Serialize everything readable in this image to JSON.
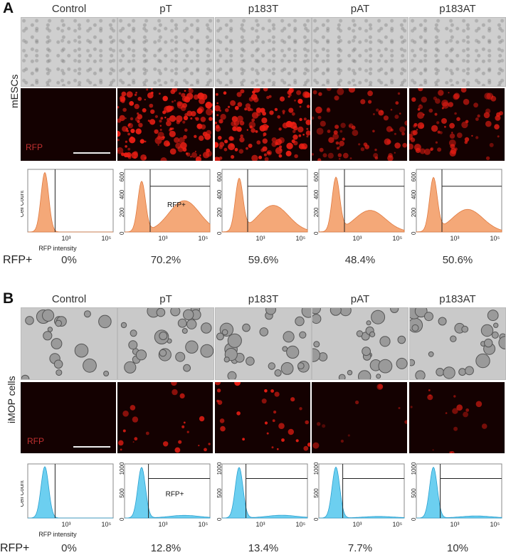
{
  "panels": [
    {
      "letter": "A",
      "row_label": "mESCs",
      "columns": [
        "Control",
        "pT",
        "p183T",
        "pAT",
        "p183AT"
      ],
      "fluor_label": "RFP",
      "rfp_row_label": "RFP+",
      "rfp_values": [
        "0%",
        "70.2%",
        "59.6%",
        "48.4%",
        "50.6%"
      ],
      "hist_color": "#f4a878",
      "hist_edge": "#e07a40",
      "fluor_intensity": [
        0,
        1.0,
        0.9,
        0.45,
        0.5
      ],
      "gate_label": "RFP+",
      "y_ticks": [
        "0",
        "200",
        "400",
        "600"
      ],
      "x_ticks": [
        "10³",
        "10⁵"
      ],
      "x_label": "RFP intensity",
      "y_label": "Cell Count"
    },
    {
      "letter": "B",
      "row_label": "iMOP cells",
      "columns": [
        "Control",
        "pT",
        "p183T",
        "pAT",
        "p183AT"
      ],
      "fluor_label": "RFP",
      "rfp_row_label": "RFP+",
      "rfp_values": [
        "0%",
        "12.8%",
        "13.4%",
        "7.7%",
        "10%"
      ],
      "hist_color": "#6ccff0",
      "hist_edge": "#2aa0d0",
      "fluor_intensity": [
        0,
        0.55,
        0.7,
        0.25,
        0.4
      ],
      "gate_label": "RFP+",
      "y_ticks": [
        "0",
        "500",
        "1000"
      ],
      "x_ticks": [
        "10³",
        "10⁵"
      ],
      "x_label": "RFP intensity",
      "y_label": "Cell Count"
    }
  ]
}
